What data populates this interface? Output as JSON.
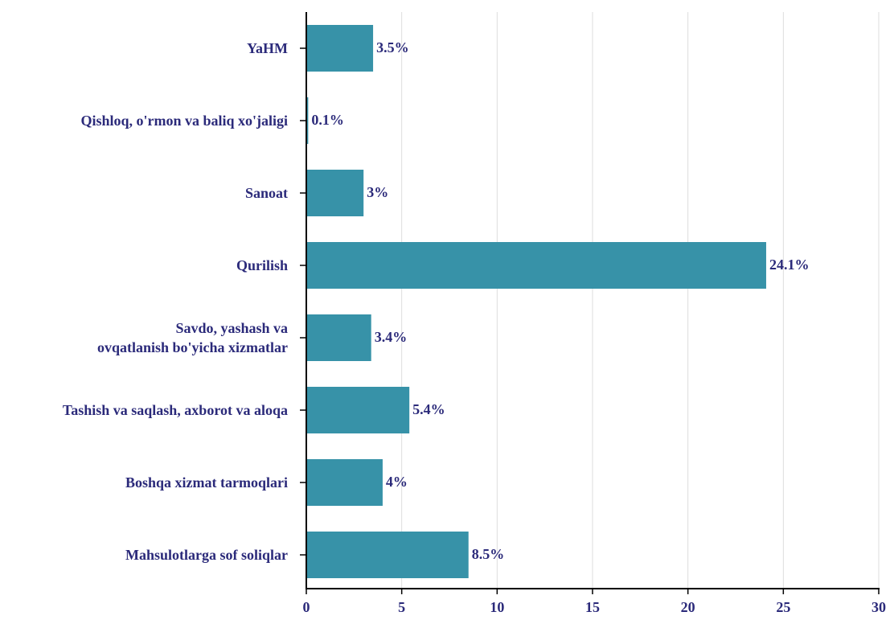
{
  "chart_data": {
    "type": "bar",
    "orientation": "horizontal",
    "categories": [
      "YaHM",
      "Qishloq, o'rmon va baliq xo'jaligi",
      "Sanoat",
      "Qurilish",
      "Savdo, yashash va\novqatlanish bo'yicha xizmatlar",
      "Tashish va saqlash, axborot va aloqa",
      "Boshqa xizmat tarmoqlari",
      "Mahsulotlarga sof soliqlar"
    ],
    "values": [
      3.5,
      0.1,
      3,
      24.1,
      3.4,
      5.4,
      4,
      8.5
    ],
    "value_labels": [
      "3.5%",
      "0.1%",
      "3%",
      "24.1%",
      "3.4%",
      "5.4%",
      "4%",
      "8.5%"
    ],
    "color": "#3792a8",
    "xlim": [
      0,
      30
    ],
    "xticks": [
      0,
      5,
      10,
      15,
      20,
      25,
      30
    ],
    "grid": true
  }
}
